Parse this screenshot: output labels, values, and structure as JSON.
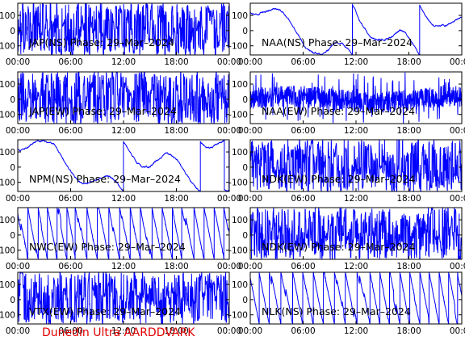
{
  "footer_label": "Dunedin Ultra AARDDVARK",
  "trace_color": "#0000ff",
  "chart_data": [
    {
      "type": "line",
      "title": "JAP(NS) Phase: 29–Mar–2024",
      "x_ticks": [
        "00:00",
        "06:00",
        "12:00",
        "18:00",
        "00:00"
      ],
      "y_ticks": [
        100,
        0,
        -100
      ],
      "ylim": [
        -160,
        180
      ],
      "xlim_hours": [
        0,
        24
      ],
      "pattern": "dense",
      "show_y_ticks": true
    },
    {
      "type": "line",
      "title": "NAA(NS) Phase: 29–Mar–2024",
      "x_ticks": [
        "00:00",
        "06:00",
        "12:00",
        "18:00",
        "00:00"
      ],
      "y_ticks": [
        100,
        0,
        -100
      ],
      "ylim": [
        -160,
        180
      ],
      "xlim_hours": [
        0,
        24
      ],
      "pattern": "drift",
      "show_y_ticks": false
    },
    {
      "type": "line",
      "title": "JAP(EW) Phase: 29–Mar–2024",
      "x_ticks": [
        "00:00",
        "06:00",
        "12:00",
        "18:00",
        "00:00"
      ],
      "y_ticks": [
        100,
        0,
        -100
      ],
      "ylim": [
        -160,
        180
      ],
      "xlim_hours": [
        0,
        24
      ],
      "pattern": "dense",
      "show_y_ticks": true
    },
    {
      "type": "line",
      "title": "NAA(EW) Phase: 29–Mar–2024",
      "x_ticks": [
        "00:00",
        "06:00",
        "12:00",
        "18:00",
        "00:00"
      ],
      "y_ticks": [
        100,
        0,
        -100
      ],
      "ylim": [
        -160,
        180
      ],
      "xlim_hours": [
        0,
        24
      ],
      "pattern": "noisy",
      "show_y_ticks": false
    },
    {
      "type": "line",
      "title": "NPM(NS) Phase: 29–Mar–2024",
      "x_ticks": [
        "00:00",
        "06:00",
        "12:00",
        "18:00",
        "00:00"
      ],
      "y_ticks": [
        100,
        0,
        -100
      ],
      "ylim": [
        -160,
        180
      ],
      "xlim_hours": [
        0,
        24
      ],
      "pattern": "drift",
      "show_y_ticks": true
    },
    {
      "type": "line",
      "title": "NDK(EW) Phase: 29–Mar–2024",
      "x_ticks": [
        "00:00",
        "06:00",
        "12:00",
        "18:00",
        "00:00"
      ],
      "y_ticks": [
        100,
        0,
        -100
      ],
      "ylim": [
        -160,
        180
      ],
      "xlim_hours": [
        0,
        24
      ],
      "pattern": "dense",
      "show_y_ticks": false
    },
    {
      "type": "line",
      "title": "NWC(EW) Phase: 29–Mar–2024",
      "x_ticks": [
        "00:00",
        "06:00",
        "12:00",
        "18:00",
        "00:00"
      ],
      "y_ticks": [
        100,
        0,
        -100
      ],
      "ylim": [
        -160,
        180
      ],
      "xlim_hours": [
        0,
        24
      ],
      "pattern": "wrap",
      "show_y_ticks": true
    },
    {
      "type": "line",
      "title": "NDK(EW) Phase: 29–Mar–2024",
      "x_ticks": [
        "00:00",
        "06:00",
        "12:00",
        "18:00",
        "00:00"
      ],
      "y_ticks": [
        100,
        0,
        -100
      ],
      "ylim": [
        -160,
        180
      ],
      "xlim_hours": [
        0,
        24
      ],
      "pattern": "dense",
      "show_y_ticks": false
    },
    {
      "type": "line",
      "title": "VTX(EW) Phase: 29–Mar–2024",
      "x_ticks": [
        "00:00",
        "06:00",
        "12:00",
        "18:00",
        "00:00"
      ],
      "y_ticks": [
        100,
        0,
        -100
      ],
      "ylim": [
        -160,
        180
      ],
      "xlim_hours": [
        0,
        24
      ],
      "pattern": "dense",
      "show_y_ticks": true
    },
    {
      "type": "line",
      "title": "NLK(NS) Phase: 29–Mar–2024",
      "x_ticks": [
        "00:00",
        "06:00",
        "12:00",
        "18:00",
        "00:00"
      ],
      "y_ticks": [
        100,
        0,
        -100
      ],
      "ylim": [
        -160,
        180
      ],
      "xlim_hours": [
        0,
        24
      ],
      "pattern": "wrap",
      "show_y_ticks": false
    }
  ]
}
